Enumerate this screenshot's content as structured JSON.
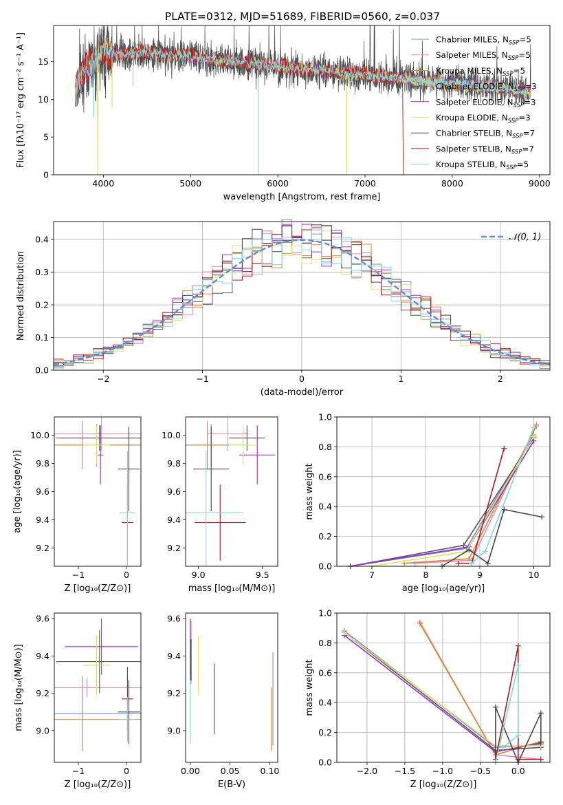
{
  "title": "PLATE=0312, MJD=51689, FIBERID=0560, z=0.037",
  "colors": [
    "#6f8fd6",
    "#e889c1",
    "#d8862a",
    "#555555",
    "#9a2fbf",
    "#dce36a",
    "#444444",
    "#b11a1a",
    "#7fd8dc"
  ],
  "legend": [
    {
      "text": "Chabrier MILES, N",
      "sub": "SSP",
      "suffix": "=5"
    },
    {
      "text": "Salpeter MILES, N",
      "sub": "SSP",
      "suffix": "=5"
    },
    {
      "text": "Kroupa MILES, N",
      "sub": "SSP",
      "suffix": "=5"
    },
    {
      "text": "Chabrier ELODIE, N",
      "sub": "SSP",
      "suffix": "=3"
    },
    {
      "text": "Salpeter ELODIE, N",
      "sub": "SSP",
      "suffix": "=3"
    },
    {
      "text": "Kroupa ELODIE, N",
      "sub": "SSP",
      "suffix": "=3"
    },
    {
      "text": "Chabrier STELIB, N",
      "sub": "SSP",
      "suffix": "=7"
    },
    {
      "text": "Salpeter STELIB, N",
      "sub": "SSP",
      "suffix": "=7"
    },
    {
      "text": "Kroupa STELIB, N",
      "sub": "SSP",
      "suffix": "=5"
    }
  ],
  "chart_data": [
    {
      "type": "line",
      "name": "spectrum",
      "xlabel": "wavelength [Angstrom, rest frame]",
      "ylabel": "Flux [fλ10⁻¹⁷ erg cm⁻² s⁻¹ A⁻¹]",
      "xlim": [
        3430,
        9120
      ],
      "ylim": [
        0,
        19.8
      ],
      "xticks": [
        4000,
        5000,
        6000,
        7000,
        8000,
        9000
      ],
      "yticks": [
        0,
        5,
        10,
        15
      ],
      "continuum": [
        [
          3680,
          11.5
        ],
        [
          3750,
          13.8
        ],
        [
          3850,
          14.5
        ],
        [
          4000,
          16.5
        ],
        [
          4200,
          16.0
        ],
        [
          4500,
          16.2
        ],
        [
          4800,
          15.9
        ],
        [
          5000,
          15.7
        ],
        [
          5300,
          15.2
        ],
        [
          5600,
          14.9
        ],
        [
          6000,
          14.4
        ],
        [
          6300,
          14.0
        ],
        [
          6600,
          13.7
        ],
        [
          7000,
          13.2
        ],
        [
          7500,
          12.6
        ],
        [
          8000,
          12.1
        ],
        [
          8500,
          11.6
        ],
        [
          8900,
          11.0
        ]
      ],
      "grid": false
    },
    {
      "type": "bar",
      "name": "residual-histogram",
      "xlabel": "(data-model)/error",
      "ylabel": "Normed distribution",
      "xlim": [
        -2.5,
        2.5
      ],
      "ylim": [
        0,
        0.455
      ],
      "xticks": [
        -2,
        -1,
        0,
        1,
        2
      ],
      "yticks": [
        0.0,
        0.1,
        0.2,
        0.3,
        0.4
      ],
      "legend": "𝒩(0, 1)",
      "grid": true,
      "bin_edges_start": -2.5,
      "bin_width": 0.1
    },
    {
      "type": "scatter",
      "name": "age-vs-Z",
      "xlabel": "Z [log₁₀(Z/Z⊙)]",
      "ylabel": "age  [log₁₀(age/yr)]",
      "xlim": [
        -1.5,
        0.3
      ],
      "ylim": [
        9.07,
        10.13
      ],
      "xticks": [
        -1,
        0
      ],
      "yticks": [
        9.2,
        9.4,
        9.6,
        9.8,
        10.0
      ],
      "points": [
        {
          "x": -0.62,
          "y": 9.93,
          "xerr": 0.8,
          "yerr": 0.15
        },
        {
          "x": -0.52,
          "y": 10.01,
          "xerr": 1.06,
          "yerr": 0.12
        },
        {
          "x": -0.92,
          "y": 9.93,
          "xerr": 1.38,
          "yerr": 0.17
        },
        {
          "x": -0.56,
          "y": 9.98,
          "xerr": 0.9,
          "yerr": 0.09
        },
        {
          "x": -0.54,
          "y": 9.86,
          "xerr": 0.06,
          "yerr": 0.21
        },
        {
          "x": -0.62,
          "y": 9.93,
          "xerr": 0.28,
          "yerr": 0.14
        },
        {
          "x": 0.05,
          "y": 9.76,
          "xerr": 0.23,
          "yerr": 0.3
        },
        {
          "x": 0.02,
          "y": 9.38,
          "xerr": 0.12,
          "yerr": 0.27
        },
        {
          "x": 0.02,
          "y": 9.45,
          "xerr": 0.16,
          "yerr": 0.44
        }
      ]
    },
    {
      "type": "scatter",
      "name": "age-vs-mass",
      "xlabel": "mass [log₁₀(M/M⊙)]",
      "ylabel": "",
      "xlim": [
        8.9,
        9.62
      ],
      "ylim": [
        9.07,
        10.13
      ],
      "xticks": [
        9.0,
        9.5
      ],
      "yticks": [
        9.2,
        9.4,
        9.6,
        9.8,
        10.0
      ],
      "points": [
        {
          "x": 9.1,
          "y": 9.93,
          "xerr": 0.26,
          "yerr": 0.15
        },
        {
          "x": 9.23,
          "y": 10.01,
          "xerr": 0.16,
          "yerr": 0.12
        },
        {
          "x": 9.07,
          "y": 9.93,
          "xerr": 0.14,
          "yerr": 0.17
        },
        {
          "x": 9.38,
          "y": 9.98,
          "xerr": 0.14,
          "yerr": 0.09
        },
        {
          "x": 9.46,
          "y": 9.86,
          "xerr": 0.14,
          "yerr": 0.21
        },
        {
          "x": 9.35,
          "y": 9.93,
          "xerr": 0.11,
          "yerr": 0.14
        },
        {
          "x": 9.1,
          "y": 9.76,
          "xerr": 0.14,
          "yerr": 0.3
        },
        {
          "x": 9.17,
          "y": 9.38,
          "xerr": 0.2,
          "yerr": 0.27
        },
        {
          "x": 9.06,
          "y": 9.45,
          "xerr": 0.29,
          "yerr": 0.44
        }
      ]
    },
    {
      "type": "line",
      "name": "mass-weight-vs-age",
      "xlabel": "age  [log₁₀(age/yr)]",
      "ylabel": "mass weight",
      "xlim": [
        6.35,
        10.3
      ],
      "ylim": [
        0,
        1
      ],
      "xticks": [
        7,
        8,
        9,
        10
      ],
      "yticks": [
        0.0,
        0.2,
        0.4,
        0.6,
        0.8,
        1.0
      ],
      "grid": true,
      "series": [
        {
          "x": [
            6.6,
            8.75,
            10.0
          ],
          "y": [
            0.0,
            0.12,
            0.88
          ]
        },
        {
          "x": [
            7.8,
            8.85,
            10.05
          ],
          "y": [
            0.02,
            0.04,
            0.95
          ]
        },
        {
          "x": [
            7.6,
            8.8,
            10.05
          ],
          "y": [
            0.02,
            0.05,
            0.94
          ]
        },
        {
          "x": [
            6.6,
            8.7,
            10.0
          ],
          "y": [
            0.0,
            0.14,
            0.86
          ]
        },
        {
          "x": [
            6.6,
            8.8,
            10.0
          ],
          "y": [
            0.0,
            0.13,
            0.84
          ]
        },
        {
          "x": [
            7.0,
            8.75,
            10.0
          ],
          "y": [
            0.0,
            0.1,
            0.87
          ]
        },
        {
          "x": [
            8.3,
            8.8,
            9.15,
            9.45,
            10.15
          ],
          "y": [
            0.0,
            0.11,
            0.02,
            0.38,
            0.33
          ]
        },
        {
          "x": [
            8.6,
            8.85,
            9.45
          ],
          "y": [
            0.02,
            0.02,
            0.79
          ]
        },
        {
          "x": [
            8.85,
            9.1,
            10.0
          ],
          "y": [
            0.02,
            0.1,
            0.93
          ]
        }
      ]
    },
    {
      "type": "scatter",
      "name": "mass-vs-Z",
      "xlabel": "Z [log₁₀(Z/Z⊙)]",
      "ylabel": "mass [log₁₀(M/M⊙)]",
      "xlim": [
        -1.5,
        0.3
      ],
      "ylim": [
        8.83,
        9.63
      ],
      "xticks": [
        -1,
        0
      ],
      "yticks": [
        9.0,
        9.2,
        9.4,
        9.6
      ],
      "points": [
        {
          "x": -0.92,
          "y": 9.09,
          "xerr": 1.38,
          "yerr": 0.2
        },
        {
          "x": -0.82,
          "y": 9.23,
          "xerr": 1.38,
          "yerr": 0.05
        },
        {
          "x": -0.92,
          "y": 9.06,
          "xerr": 1.38,
          "yerr": 0.17
        },
        {
          "x": -0.56,
          "y": 9.37,
          "xerr": 0.9,
          "yerr": 0.17
        },
        {
          "x": -0.52,
          "y": 9.45,
          "xerr": 0.76,
          "yerr": 0.15
        },
        {
          "x": -0.62,
          "y": 9.35,
          "xerr": 0.28,
          "yerr": 0.16
        },
        {
          "x": 0.05,
          "y": 9.1,
          "xerr": 0.23,
          "yerr": 0.17
        },
        {
          "x": 0.02,
          "y": 9.17,
          "xerr": 0.12,
          "yerr": 0.17
        },
        {
          "x": 0.02,
          "y": 9.06,
          "xerr": 0.16,
          "yerr": 0.12
        }
      ]
    },
    {
      "type": "scatter",
      "name": "mass-vs-EBV",
      "xlabel": "E(B-V)",
      "ylabel": "",
      "xlim": [
        -0.006,
        0.11
      ],
      "ylim": [
        8.83,
        9.63
      ],
      "xticks": [
        0.0,
        0.05,
        0.1
      ],
      "tick_labels": [
        "0.00",
        "0.05",
        "0.10"
      ],
      "yticks": [
        9.0,
        9.2,
        9.4,
        9.6
      ],
      "points": [
        {
          "x": 0.104,
          "y": 9.17,
          "xerr": 0,
          "yerr": 0.25
        },
        {
          "x": 0.001,
          "y": 9.42,
          "xerr": 0,
          "yerr": 0.17
        },
        {
          "x": 0.102,
          "y": 9.06,
          "xerr": 0,
          "yerr": 0.17
        },
        {
          "x": 0.001,
          "y": 9.38,
          "xerr": 0,
          "yerr": 0.11
        },
        {
          "x": 0.0,
          "y": 9.45,
          "xerr": 0,
          "yerr": 0.15
        },
        {
          "x": 0.01,
          "y": 9.35,
          "xerr": 0,
          "yerr": 0.16
        },
        {
          "x": 0.0,
          "y": 9.37,
          "xerr": 0,
          "yerr": 0.12
        },
        {
          "x": 0.03,
          "y": 9.17,
          "xerr": 0,
          "yerr": 0.19
        },
        {
          "x": 0.0,
          "y": 9.1,
          "xerr": 0,
          "yerr": 0.17
        }
      ]
    },
    {
      "type": "line",
      "name": "mass-weight-vs-Z",
      "xlabel": "Z [log₁₀(Z/Z⊙)]",
      "ylabel": "mass weight",
      "xlim": [
        -2.4,
        0.42
      ],
      "ylim": [
        0,
        1
      ],
      "xticks": [
        -2.0,
        -1.5,
        -1.0,
        -0.5,
        0.0
      ],
      "yticks": [
        0.0,
        0.2,
        0.4,
        0.6,
        0.8,
        1.0
      ],
      "grid": true,
      "series": [
        {
          "x": [
            -2.3,
            -0.3,
            0.3
          ],
          "y": [
            0.88,
            0.1,
            0.12
          ]
        },
        {
          "x": [
            -1.3,
            -0.3,
            0.3
          ],
          "y": [
            0.94,
            0.05,
            0.02
          ]
        },
        {
          "x": [
            -1.3,
            -0.3,
            0.3
          ],
          "y": [
            0.93,
            0.05,
            0.14
          ]
        },
        {
          "x": [
            -2.3,
            -0.3,
            0.3
          ],
          "y": [
            0.87,
            0.08,
            0.1
          ]
        },
        {
          "x": [
            -2.3,
            -0.3,
            0.3
          ],
          "y": [
            0.85,
            0.07,
            0.13
          ]
        },
        {
          "x": [
            -2.3,
            -0.3,
            0.3
          ],
          "y": [
            0.87,
            0.11,
            0.11
          ]
        },
        {
          "x": [
            -0.3,
            -0.3,
            0.0,
            0.3,
            0.3
          ],
          "y": [
            0.0,
            0.37,
            0.0,
            0.33,
            0.13
          ]
        },
        {
          "x": [
            -0.3,
            0.0,
            0.0,
            0.3
          ],
          "y": [
            0.02,
            0.78,
            0.02,
            0.02
          ]
        },
        {
          "x": [
            -0.3,
            0.0,
            0.0,
            -0.2
          ],
          "y": [
            0.0,
            0.65,
            0.18,
            0.1
          ]
        }
      ]
    }
  ]
}
